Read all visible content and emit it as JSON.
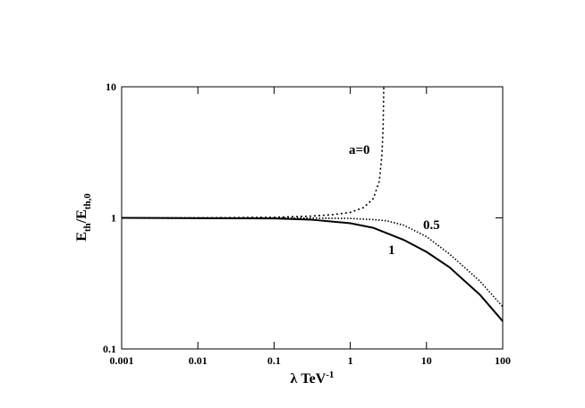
{
  "chart_data": {
    "type": "line",
    "xlabel": {
      "main": "λ TeV",
      "sup": "-1"
    },
    "ylabel": {
      "main1": "E",
      "sub1": "th",
      "main2": "/E",
      "sub2": "th,0"
    },
    "xlog": true,
    "ylog": true,
    "xlim": [
      0.001,
      100
    ],
    "ylim": [
      0.1,
      10
    ],
    "xticks": [
      0.001,
      0.01,
      0.1,
      1,
      10,
      100
    ],
    "yticks": [
      0.1,
      1,
      10
    ],
    "series": [
      {
        "name": "a=0",
        "color": "#000",
        "style": "dotted",
        "x": [
          0.001,
          0.01,
          0.1,
          0.3,
          0.6,
          1,
          1.5,
          2,
          2.4,
          2.6,
          2.7,
          2.75
        ],
        "values": [
          1,
          1,
          1.01,
          1.03,
          1.06,
          1.1,
          1.2,
          1.4,
          1.9,
          3,
          5,
          10
        ]
      },
      {
        "name": "0.5",
        "color": "#000",
        "style": "dotted",
        "x": [
          0.001,
          0.1,
          1,
          2,
          3,
          5,
          10,
          20,
          50,
          100
        ],
        "values": [
          1,
          1,
          0.99,
          0.97,
          0.95,
          0.88,
          0.72,
          0.53,
          0.33,
          0.21
        ]
      },
      {
        "name": "1",
        "color": "#000",
        "style": "solid",
        "x": [
          0.001,
          0.1,
          0.3,
          1,
          2,
          5,
          10,
          20,
          50,
          100
        ],
        "values": [
          1,
          0.99,
          0.97,
          0.91,
          0.84,
          0.68,
          0.55,
          0.42,
          0.26,
          0.163
        ]
      }
    ]
  }
}
